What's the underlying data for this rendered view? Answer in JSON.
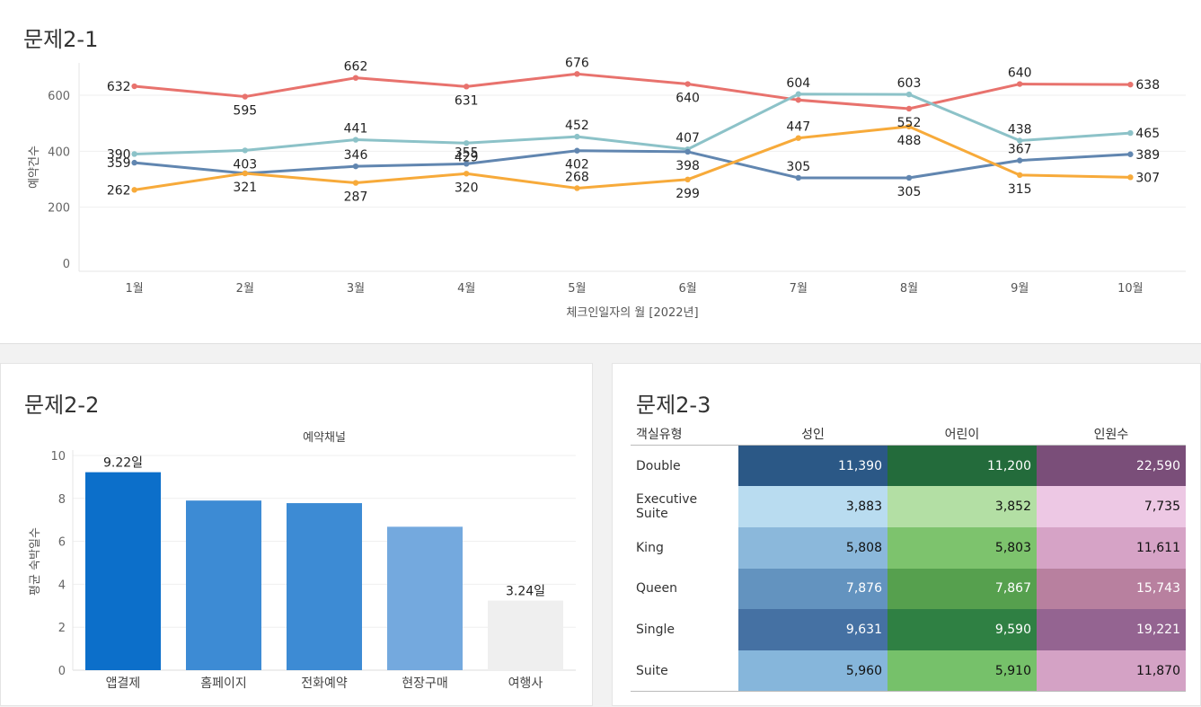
{
  "chart1": {
    "title": "문제2-1",
    "chart_data": {
      "type": "line",
      "categories": [
        "1월",
        "2월",
        "3월",
        "4월",
        "5월",
        "6월",
        "7월",
        "8월",
        "9월",
        "10월"
      ],
      "xlabel": "체크인일자의 월 [2022년]",
      "ylabel": "예약건수",
      "ylim": [
        0,
        700
      ],
      "yticks": [
        "0",
        "200",
        "400",
        "600"
      ],
      "grid": true,
      "series": [
        {
          "color": "#e8726d",
          "values": [
            632,
            595,
            662,
            631,
            676,
            640,
            583,
            552,
            640,
            638
          ],
          "labels": [
            "632",
            "595",
            "662",
            "631",
            "676",
            "640",
            "",
            "552",
            "640",
            "638"
          ]
        },
        {
          "color": "#8cc2c8",
          "values": [
            390,
            403,
            441,
            429,
            452,
            407,
            604,
            603,
            438,
            465
          ],
          "labels": [
            "390",
            "403",
            "441",
            "429",
            "452",
            "407",
            "604",
            "603",
            "438",
            "465"
          ]
        },
        {
          "color": "#6186b0",
          "values": [
            359,
            321,
            346,
            355,
            402,
            398,
            305,
            305,
            367,
            389
          ],
          "labels": [
            "359",
            "",
            "346",
            "355",
            "402",
            "398",
            "305",
            "305",
            "367",
            "389"
          ]
        },
        {
          "color": "#f7aa3a",
          "values": [
            262,
            321,
            287,
            320,
            268,
            299,
            447,
            488,
            315,
            307
          ],
          "labels": [
            "262",
            "321",
            "287",
            "320",
            "268",
            "299",
            "447",
            "488",
            "315",
            "307"
          ]
        }
      ]
    }
  },
  "chart2": {
    "title": "문제2-2",
    "chart_data": {
      "type": "bar",
      "title": "예약채널",
      "categories": [
        "앱결제",
        "홈페이지",
        "전화예약",
        "현장구매",
        "여행사"
      ],
      "values": [
        9.22,
        7.9,
        7.78,
        6.68,
        3.24
      ],
      "labels": [
        "9.22일",
        "",
        "",
        "",
        "3.24일"
      ],
      "colors": [
        "#0c6fca",
        "#3d8bd4",
        "#3d8bd4",
        "#74a9de",
        "#efefef"
      ],
      "ylabel": "평균 숙박일수",
      "ylim": [
        0,
        10
      ],
      "yticks": [
        "0",
        "2",
        "4",
        "6",
        "8",
        "10"
      ],
      "grid": true
    }
  },
  "chart3": {
    "title": "문제2-3",
    "chart_data": {
      "type": "heatmap",
      "row_header": "객실유형",
      "columns": [
        "성인",
        "어린이",
        "인원수"
      ],
      "rows": [
        {
          "label": "Double",
          "values": [
            "11,390",
            "11,200",
            "22,590"
          ],
          "colors": [
            "#2b5886",
            "#236b3b",
            "#7a4e79"
          ]
        },
        {
          "label": "Executive Suite",
          "values": [
            "3,883",
            "3,852",
            "7,735"
          ],
          "colors": [
            "#b9dcf0",
            "#b3dfa4",
            "#edc8e4"
          ]
        },
        {
          "label": "King",
          "values": [
            "5,808",
            "5,803",
            "11,611"
          ],
          "colors": [
            "#8bb8db",
            "#7dc36d",
            "#d6a3c6"
          ]
        },
        {
          "label": "Queen",
          "values": [
            "7,876",
            "7,867",
            "15,743"
          ],
          "colors": [
            "#6393bf",
            "#56a04e",
            "#b8809f"
          ]
        },
        {
          "label": "Single",
          "values": [
            "9,631",
            "9,590",
            "19,221"
          ],
          "colors": [
            "#4571a3",
            "#2f8043",
            "#946491"
          ]
        },
        {
          "label": "Suite",
          "values": [
            "5,960",
            "5,910",
            "11,870"
          ],
          "colors": [
            "#86b6db",
            "#76c16a",
            "#d4a2c5"
          ]
        }
      ]
    }
  }
}
